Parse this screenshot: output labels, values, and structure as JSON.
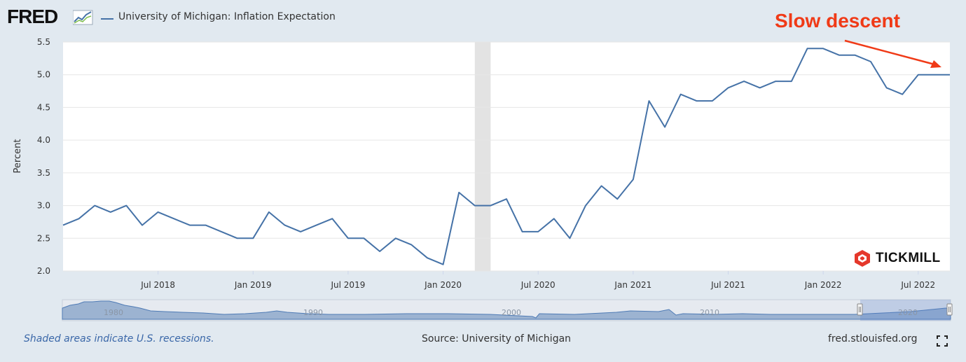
{
  "header": {
    "logo": "FRED",
    "legend_label": "University of Michigan: Inflation Expectation",
    "series_color": "#4572a7"
  },
  "annotation": {
    "text": "Slow descent",
    "color": "#f03a17"
  },
  "watermark": "TICKMILL",
  "footer": {
    "recessions_note": "Shaded areas indicate U.S. recessions.",
    "source": "Source: University of Michigan",
    "site": "fred.stlouisfed.org"
  },
  "chart_data": {
    "type": "line",
    "title": "",
    "xlabel": "",
    "ylabel": "Percent",
    "ylim": [
      2.0,
      5.5
    ],
    "yticks": [
      "2.0",
      "2.5",
      "3.0",
      "3.5",
      "4.0",
      "4.5",
      "5.0",
      "5.5"
    ],
    "x_tick_labels": [
      "Jul 2018",
      "Jan 2019",
      "Jul 2019",
      "Jan 2020",
      "Jul 2020",
      "Jan 2021",
      "Jul 2021",
      "Jan 2022",
      "Jul 2022"
    ],
    "x_range": [
      "2018-01",
      "2022-09"
    ],
    "grid": "horizontal",
    "recession_shading": [
      "2020-03",
      "2020-04"
    ],
    "series": [
      {
        "name": "University of Michigan: Inflation Expectation",
        "x": [
          "2018-01",
          "2018-02",
          "2018-03",
          "2018-04",
          "2018-05",
          "2018-06",
          "2018-07",
          "2018-08",
          "2018-09",
          "2018-10",
          "2018-11",
          "2018-12",
          "2019-01",
          "2019-02",
          "2019-03",
          "2019-04",
          "2019-05",
          "2019-06",
          "2019-07",
          "2019-08",
          "2019-09",
          "2019-10",
          "2019-11",
          "2019-12",
          "2020-01",
          "2020-02",
          "2020-03",
          "2020-04",
          "2020-05",
          "2020-06",
          "2020-07",
          "2020-08",
          "2020-09",
          "2020-10",
          "2020-11",
          "2020-12",
          "2021-01",
          "2021-02",
          "2021-03",
          "2021-04",
          "2021-05",
          "2021-06",
          "2021-07",
          "2021-08",
          "2021-09",
          "2021-10",
          "2021-11",
          "2021-12",
          "2022-01",
          "2022-02",
          "2022-03",
          "2022-04",
          "2022-05",
          "2022-06",
          "2022-07",
          "2022-08",
          "2022-09"
        ],
        "values": [
          2.7,
          2.8,
          3.0,
          2.9,
          3.0,
          2.7,
          2.9,
          2.8,
          2.7,
          2.7,
          2.6,
          2.5,
          2.5,
          2.9,
          2.7,
          2.6,
          2.7,
          2.8,
          2.5,
          2.5,
          2.3,
          2.5,
          2.4,
          2.2,
          2.1,
          3.2,
          3.0,
          3.0,
          3.1,
          2.6,
          2.6,
          2.8,
          2.5,
          3.0,
          3.3,
          3.1,
          3.4,
          4.6,
          4.2,
          4.7,
          4.6,
          4.6,
          4.8,
          4.9,
          4.8,
          4.9,
          4.9,
          5.4,
          5.4,
          5.3,
          5.3,
          5.2,
          4.8,
          4.7,
          5.0,
          5.0,
          5.0
        ]
      }
    ],
    "navigator": {
      "tick_labels": [
        "1980",
        "1990",
        "2000",
        "2010",
        "2020"
      ]
    }
  }
}
